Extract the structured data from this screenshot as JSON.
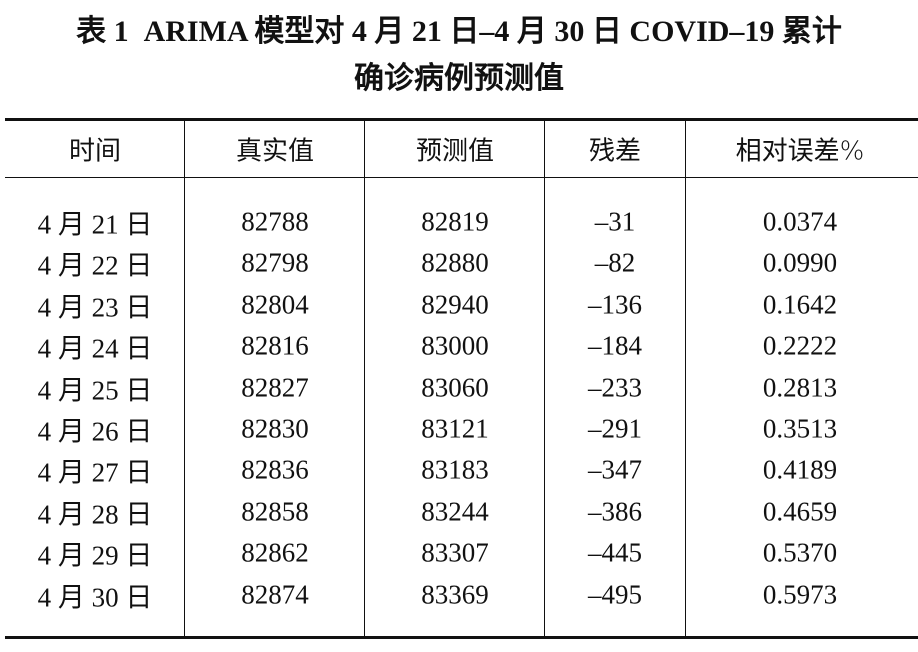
{
  "title": [
    "表 1  ARIMA 模型对 4 月 21 日–4 月 30 日 COVID–19 累计",
    "确诊病例预测值"
  ],
  "table": {
    "header": [
      "时间",
      "真实值",
      "预测值",
      "残差",
      "相对误差%"
    ],
    "rows": [
      [
        "4 月 21 日",
        "82788",
        "82819",
        "–31",
        "0.0374"
      ],
      [
        "4 月 22 日",
        "82798",
        "82880",
        "–82",
        "0.0990"
      ],
      [
        "4 月 23 日",
        "82804",
        "82940",
        "–136",
        "0.1642"
      ],
      [
        "4 月 24 日",
        "82816",
        "83000",
        "–184",
        "0.2222"
      ],
      [
        "4 月 25 日",
        "82827",
        "83060",
        "–233",
        "0.2813"
      ],
      [
        "4 月 26 日",
        "82830",
        "83121",
        "–291",
        "0.3513"
      ],
      [
        "4 月 27 日",
        "82836",
        "83183",
        "–347",
        "0.4189"
      ],
      [
        "4 月 28 日",
        "82858",
        "83244",
        "–386",
        "0.4659"
      ],
      [
        "4 月 29 日",
        "82862",
        "83307",
        "–445",
        "0.5370"
      ],
      [
        "4 月 30 日",
        "82874",
        "83369",
        "–495",
        "0.5973"
      ]
    ]
  }
}
